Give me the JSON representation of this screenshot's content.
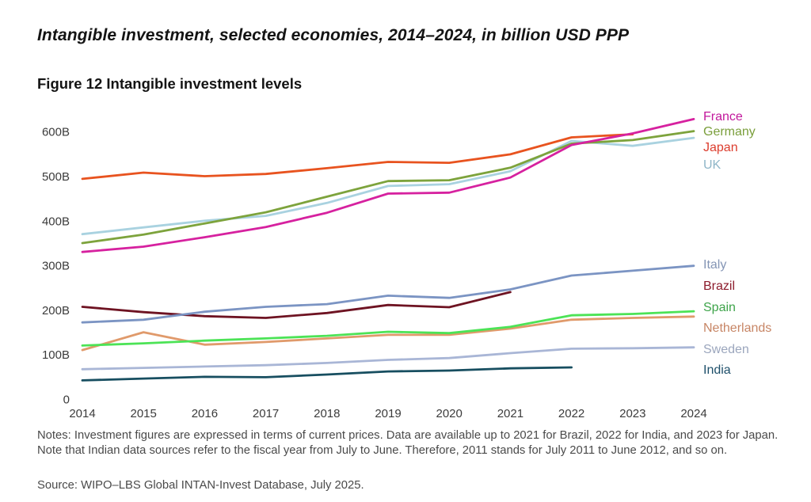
{
  "header": {
    "title": "Intangible investment, selected economies, 2014–2024, in billion USD PPP",
    "figure_label": "Figure 12 Intangible investment levels"
  },
  "chart_data": {
    "type": "line",
    "title": "Figure 12 Intangible investment levels",
    "unit": "billion USD PPP",
    "x": [
      2014,
      2015,
      2016,
      2017,
      2018,
      2019,
      2020,
      2021,
      2022,
      2023,
      2024
    ],
    "x_tick_labels": [
      "2014",
      "2015",
      "2016",
      "2017",
      "2018",
      "2019",
      "2020",
      "2021",
      "2022",
      "2023",
      "2024"
    ],
    "y_ticks": [
      {
        "value": 0,
        "label": "0"
      },
      {
        "value": 100,
        "label": "100B"
      },
      {
        "value": 200,
        "label": "200B"
      },
      {
        "value": 300,
        "label": "300B"
      },
      {
        "value": 400,
        "label": "400B"
      },
      {
        "value": 500,
        "label": "500B"
      },
      {
        "value": 600,
        "label": "600B"
      }
    ],
    "ylim": [
      0,
      660
    ],
    "grid": false,
    "legend_position": "right-of-line-ends",
    "series": [
      {
        "name": "France",
        "color": "#D6219F",
        "label_color": "#C2189C",
        "values": [
          330,
          342,
          363,
          386,
          418,
          461,
          463,
          497,
          570,
          596,
          628
        ]
      },
      {
        "name": "Germany",
        "color": "#7DA33C",
        "label_color": "#7A9E3B",
        "values": [
          350,
          369,
          394,
          419,
          454,
          489,
          491,
          519,
          573,
          581,
          601
        ]
      },
      {
        "name": "Japan",
        "color": "#E8531F",
        "label_color": "#DC3D2E",
        "values": [
          494,
          508,
          500,
          505,
          518,
          532,
          530,
          549,
          587,
          594,
          null
        ]
      },
      {
        "name": "UK",
        "color": "#A9D2E0",
        "label_color": "#8FB6C8",
        "values": [
          370,
          385,
          400,
          411,
          440,
          478,
          482,
          511,
          579,
          568,
          586
        ]
      },
      {
        "name": "Italy",
        "color": "#7B94C3",
        "label_color": "#8495B5",
        "values": [
          172,
          178,
          196,
          207,
          213,
          232,
          227,
          246,
          277,
          288,
          299
        ]
      },
      {
        "name": "Brazil",
        "color": "#6E1322",
        "label_color": "#8C1C2C",
        "values": [
          207,
          195,
          186,
          182,
          193,
          211,
          206,
          240,
          null,
          null,
          null
        ]
      },
      {
        "name": "Spain",
        "color": "#4CE356",
        "label_color": "#3EA44A",
        "values": [
          120,
          125,
          131,
          136,
          142,
          151,
          148,
          162,
          188,
          191,
          197
        ]
      },
      {
        "name": "Netherlands",
        "color": "#E09A6B",
        "label_color": "#C78565",
        "values": [
          110,
          150,
          122,
          128,
          136,
          144,
          144,
          158,
          178,
          182,
          185
        ]
      },
      {
        "name": "Sweden",
        "color": "#A9B6D6",
        "label_color": "#9BA6BD",
        "values": [
          67,
          70,
          73,
          76,
          81,
          88,
          92,
          103,
          113,
          114,
          116
        ]
      },
      {
        "name": "India",
        "color": "#174E60",
        "label_color": "#1F506B",
        "values": [
          42,
          46,
          50,
          49,
          55,
          62,
          64,
          69,
          71,
          null,
          null
        ]
      }
    ]
  },
  "notes": {
    "text": "Notes: Investment figures are expressed in terms of current prices. Data are available up to 2021 for Brazil, 2022 for India, and 2023 for Japan. Note that Indian data sources refer to the fiscal year from July to June. Therefore, 2011 stands for July 2011 to June 2012, and so on."
  },
  "source": {
    "text": "Source: WIPO–LBS Global INTAN-Invest Database, July 2025."
  }
}
